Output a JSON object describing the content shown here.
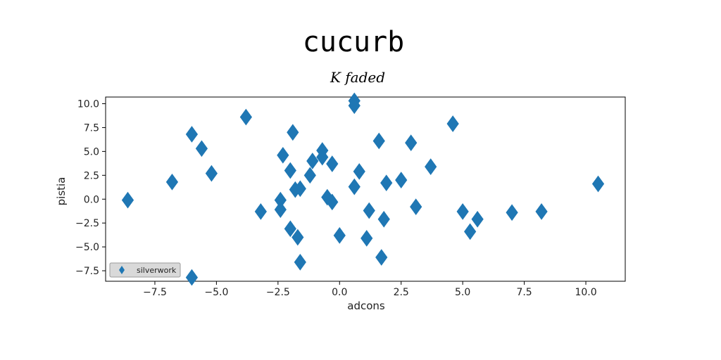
{
  "chart_data": {
    "type": "scatter",
    "title": "cucurb",
    "subtitle": "K faded",
    "xlabel": "adcons",
    "ylabel": "pistia",
    "xlim": [
      -9.5,
      11.6
    ],
    "ylim": [
      -8.6,
      10.7
    ],
    "xticks": [
      "−7.5",
      "−5.0",
      "−2.5",
      "0.0",
      "2.5",
      "5.0",
      "7.5",
      "10.0"
    ],
    "xtick_values": [
      -7.5,
      -5.0,
      -2.5,
      0.0,
      2.5,
      5.0,
      7.5,
      10.0
    ],
    "yticks": [
      "10.0",
      "7.5",
      "5.0",
      "2.5",
      "0.0",
      "−2.5",
      "−5.0",
      "−7.5"
    ],
    "ytick_values": [
      10.0,
      7.5,
      5.0,
      2.5,
      0.0,
      -2.5,
      -5.0,
      -7.5
    ],
    "grid": false,
    "legend": {
      "position": "bottom-left",
      "entries": [
        "silverwork"
      ]
    },
    "marker": "diamond",
    "color": "#1f77b4",
    "series": [
      {
        "name": "silverwork",
        "x": [
          -8.6,
          -6.8,
          -6.0,
          -5.6,
          -5.2,
          -3.8,
          -3.2,
          -2.4,
          -2.3,
          -2.4,
          -2.0,
          -2.0,
          -1.9,
          -1.8,
          -1.7,
          -1.6,
          -1.6,
          -1.2,
          -1.1,
          -0.7,
          -0.7,
          -0.5,
          -0.3,
          -0.3,
          0.0,
          0.6,
          0.6,
          0.6,
          0.8,
          1.1,
          1.2,
          1.6,
          1.7,
          1.8,
          1.9,
          2.5,
          2.9,
          3.1,
          3.7,
          4.6,
          5.0,
          5.3,
          5.6,
          7.0,
          8.2,
          10.5,
          -6.0
        ],
        "y": [
          -0.1,
          1.8,
          6.8,
          5.3,
          2.7,
          8.6,
          -1.3,
          -1.1,
          4.6,
          -0.1,
          3.0,
          -3.1,
          7.0,
          1.0,
          -4.0,
          -6.6,
          1.1,
          2.5,
          4.0,
          5.1,
          4.4,
          0.2,
          3.7,
          -0.3,
          -3.8,
          10.3,
          9.8,
          1.3,
          2.9,
          -4.1,
          -1.2,
          6.1,
          -6.1,
          -2.1,
          1.7,
          2.0,
          5.9,
          -0.8,
          3.4,
          7.9,
          -1.3,
          -3.4,
          -2.1,
          -1.4,
          -1.3,
          1.6,
          -8.2
        ]
      }
    ]
  }
}
